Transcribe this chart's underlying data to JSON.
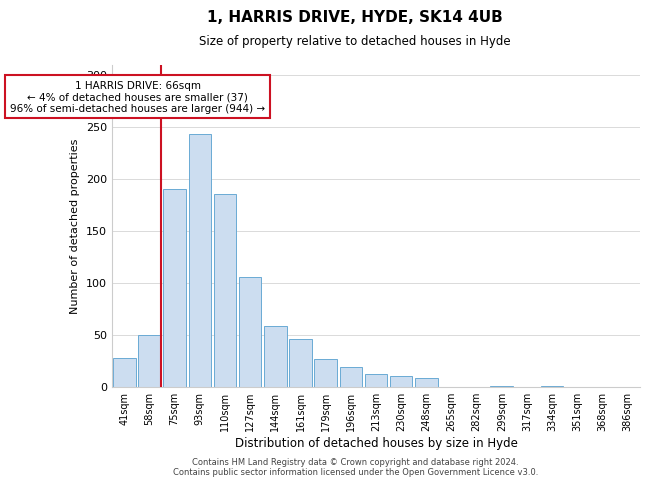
{
  "title": "1, HARRIS DRIVE, HYDE, SK14 4UB",
  "subtitle": "Size of property relative to detached houses in Hyde",
  "xlabel": "Distribution of detached houses by size in Hyde",
  "ylabel": "Number of detached properties",
  "bar_labels": [
    "41sqm",
    "58sqm",
    "75sqm",
    "93sqm",
    "110sqm",
    "127sqm",
    "144sqm",
    "161sqm",
    "179sqm",
    "196sqm",
    "213sqm",
    "230sqm",
    "248sqm",
    "265sqm",
    "282sqm",
    "299sqm",
    "317sqm",
    "334sqm",
    "351sqm",
    "368sqm",
    "386sqm"
  ],
  "bar_values": [
    28,
    50,
    190,
    243,
    185,
    106,
    58,
    46,
    27,
    19,
    12,
    10,
    8,
    0,
    0,
    1,
    0,
    1,
    0,
    0,
    0
  ],
  "bar_color": "#ccddf0",
  "bar_edge_color": "#6aaad4",
  "highlight_bar_index": 1,
  "highlight_color": "#cc1122",
  "ylim": [
    0,
    310
  ],
  "yticks": [
    0,
    50,
    100,
    150,
    200,
    250,
    300
  ],
  "annotation_text": "1 HARRIS DRIVE: 66sqm\n← 4% of detached houses are smaller (37)\n96% of semi-detached houses are larger (944) →",
  "annotation_box_color": "#ffffff",
  "annotation_box_edge_color": "#cc1122",
  "footer_line1": "Contains HM Land Registry data © Crown copyright and database right 2024.",
  "footer_line2": "Contains public sector information licensed under the Open Government Licence v3.0.",
  "grid_color": "#cccccc",
  "bg_color": "#ffffff"
}
